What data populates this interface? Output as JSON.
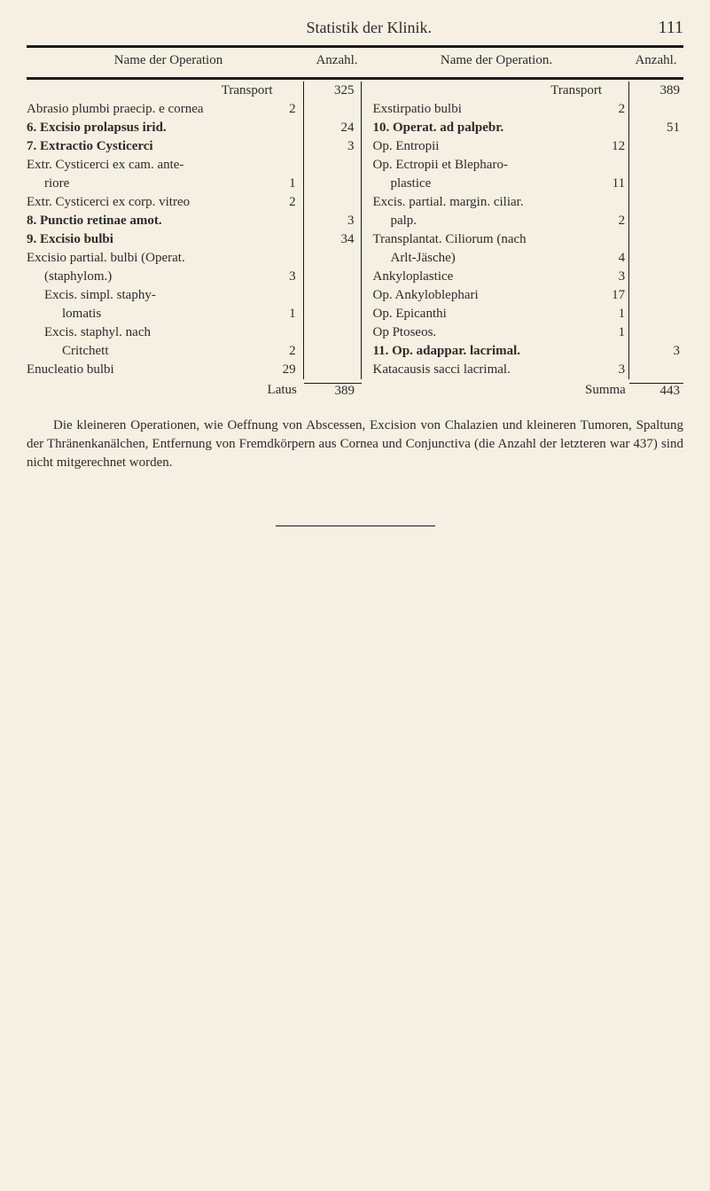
{
  "header": {
    "title": "Statistik der Klinik.",
    "page_number": "111"
  },
  "table_head": {
    "name_left": "Name der Operation",
    "anzahl_left": "Anzahl.",
    "name_right": "Name der Operation.",
    "anzahl_right": "Anzahl."
  },
  "left_entries": [
    {
      "text": "Transport",
      "align": "right",
      "sub": "",
      "num": "325"
    },
    {
      "text": "Abrasio plumbi praecip. e cornea",
      "sub": "2",
      "num": ""
    },
    {
      "text": "6. Excisio prolapsus irid.",
      "bold": true,
      "sub": "",
      "num": "24"
    },
    {
      "text": "7. Extractio Cysticerci",
      "bold": true,
      "sub": "",
      "num": "3"
    },
    {
      "text": "Extr. Cysticerci ex cam. ante-",
      "sub": "",
      "num": ""
    },
    {
      "text": "riore",
      "indent": 1,
      "sub": "1",
      "num": ""
    },
    {
      "text": "Extr. Cysticerci ex corp. vitreo",
      "sub": "2",
      "num": ""
    },
    {
      "text": "8. Punctio retinae amot.",
      "bold": true,
      "sub": "",
      "num": "3"
    },
    {
      "text": "9. Excisio bulbi",
      "bold": true,
      "sub": "",
      "num": "34"
    },
    {
      "text": "Excisio partial. bulbi (Operat.",
      "sub": "",
      "num": ""
    },
    {
      "text": "(staphylom.)",
      "indent": 1,
      "sub": "3",
      "num": ""
    },
    {
      "text": "Excis. simpl. staphy-",
      "indent": 1,
      "sub": "",
      "num": ""
    },
    {
      "text": "lomatis",
      "indent": 2,
      "sub": "1",
      "num": ""
    },
    {
      "text": "Excis. staphyl. nach",
      "indent": 1,
      "sub": "",
      "num": ""
    },
    {
      "text": "Critchett",
      "indent": 2,
      "sub": "2",
      "num": ""
    },
    {
      "text": "Enucleatio bulbi",
      "sub": "29",
      "num": ""
    }
  ],
  "right_entries": [
    {
      "text": "Transport",
      "align": "right",
      "sub": "",
      "num": "389"
    },
    {
      "text": "Exstirpatio bulbi",
      "sub": "2",
      "num": ""
    },
    {
      "text": "10. Operat. ad palpebr.",
      "bold": true,
      "sub": "",
      "num": "51"
    },
    {
      "text": "Op. Entropii",
      "sub": "12",
      "num": ""
    },
    {
      "text": "Op. Ectropii et Blepharo-",
      "sub": "",
      "num": ""
    },
    {
      "text": "plastice",
      "indent": 1,
      "sub": "11",
      "num": ""
    },
    {
      "text": "Excis. partial. margin. ciliar.",
      "sub": "",
      "num": ""
    },
    {
      "text": "palp.",
      "indent": 1,
      "sub": "2",
      "num": ""
    },
    {
      "text": "Transplantat. Ciliorum (nach",
      "sub": "",
      "num": ""
    },
    {
      "text": "Arlt-Jäsche)",
      "indent": 1,
      "sub": "4",
      "num": ""
    },
    {
      "text": "Ankyloplastice",
      "sub": "3",
      "num": ""
    },
    {
      "text": "Op. Ankyloblephari",
      "sub": "17",
      "num": ""
    },
    {
      "text": "Op. Epicanthi",
      "sub": "1",
      "num": ""
    },
    {
      "text": "Op Ptoseos.",
      "sub": "1",
      "num": ""
    },
    {
      "text": "11. Op. adappar. lacrimal.",
      "bold": true,
      "sub": "",
      "num": "3"
    },
    {
      "text": "Katacausis sacci lacrimal.",
      "sub": "3",
      "num": ""
    }
  ],
  "latus": {
    "label": "Latus",
    "left_total": "389",
    "summa_label": "Summa",
    "right_total": "443"
  },
  "paragraph": "Die kleineren Operationen, wie Oeffnung von Abscessen, Excision von Chalazien und kleineren Tumoren, Spaltung der Thränenkanälchen, Entfernung von Fremdkörpern aus Cornea und Conjunctiva (die Anzahl der letzteren war 437) sind nicht mitgerechnet worden."
}
